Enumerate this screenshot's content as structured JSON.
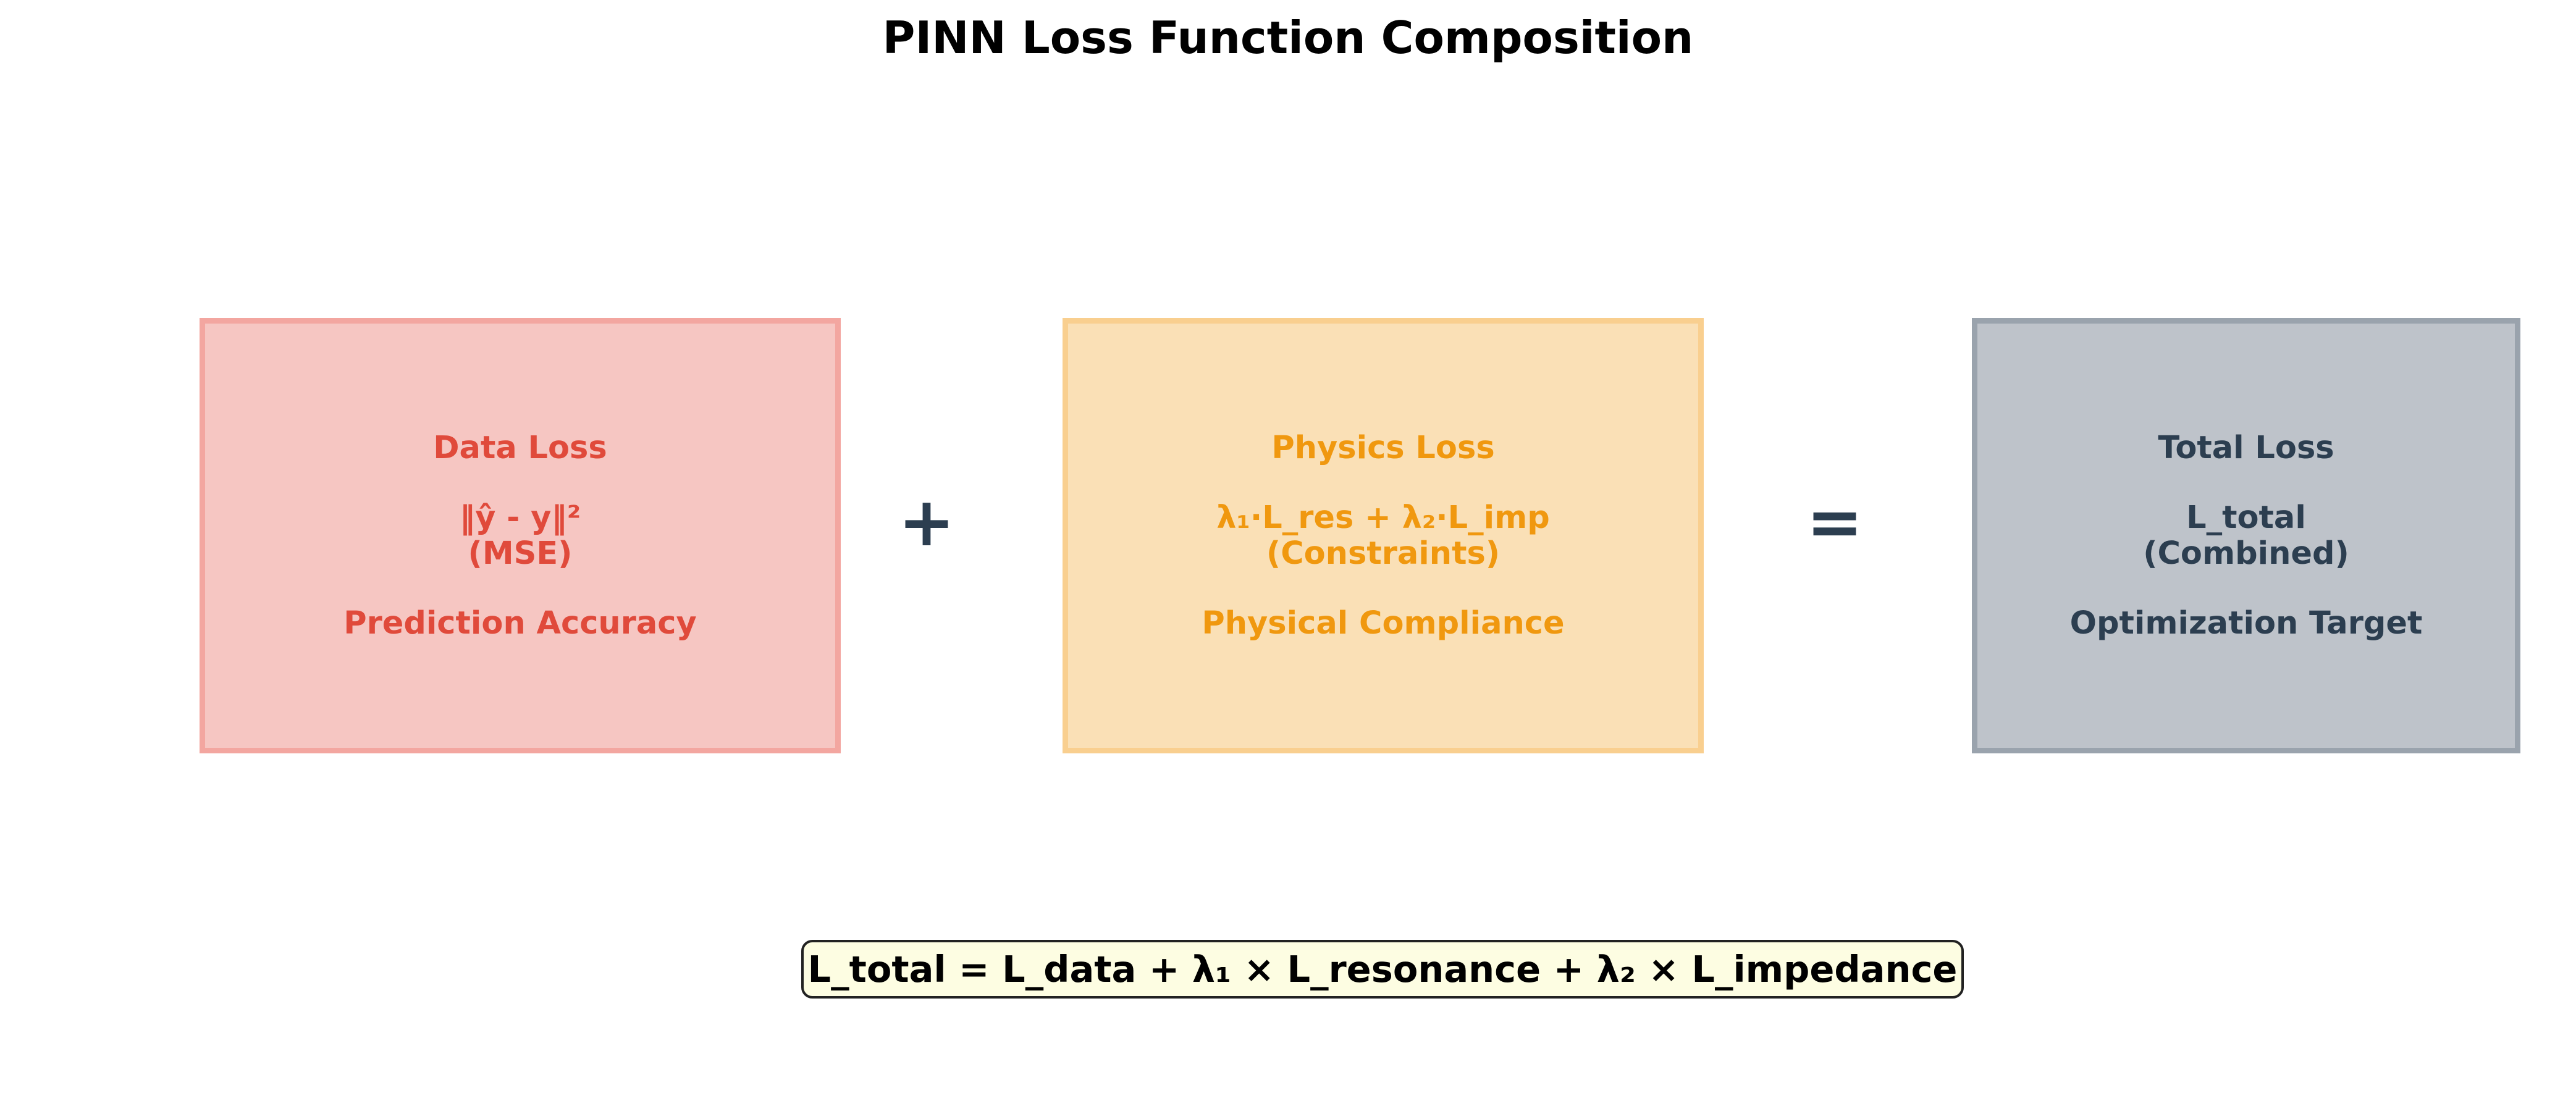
{
  "title": "PINN Loss Function Composition",
  "boxes": [
    {
      "heading": "Data Loss",
      "formula": "‖ŷ - y‖²",
      "note": "(MSE)",
      "caption": "Prediction Accuracy",
      "text_color": "#e04a3b",
      "fill_color": "#f6c6c2"
    },
    {
      "heading": "Physics Loss",
      "formula": "λ₁·L_res + λ₂·L_imp",
      "note": "(Constraints)",
      "caption": "Physical Compliance",
      "text_color": "#f0980f",
      "fill_color": "#fae0b6"
    },
    {
      "heading": "Total Loss",
      "formula": "L_total",
      "note": "(Combined)",
      "caption": "Optimization Target",
      "text_color": "#2c3e50",
      "fill_color": "#bec3ca"
    }
  ],
  "operators": {
    "plus": "+",
    "equals": "="
  },
  "formula_banner": "L_total = L_data + λ₁ × L_resonance + λ₂ × L_impedance"
}
